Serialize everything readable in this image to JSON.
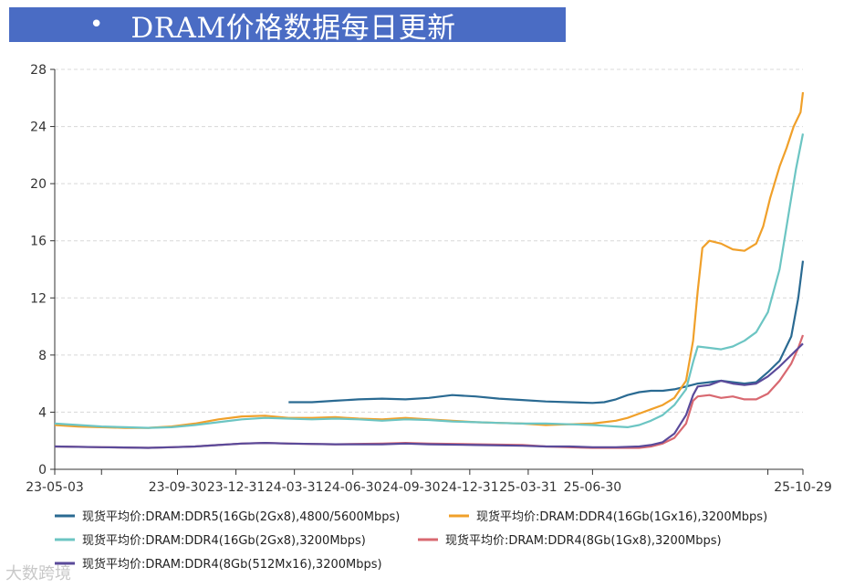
{
  "header": {
    "bullet": "•",
    "title": "DRAM价格数据每日更新"
  },
  "watermark": "大数跨境",
  "chart_data": {
    "type": "line",
    "title": "DRAM价格数据每日更新",
    "xlabel": "",
    "ylabel": "",
    "ylim": [
      0,
      28
    ],
    "yticks": [
      "0",
      "4",
      "8",
      "12",
      "16",
      "20",
      "24",
      "28"
    ],
    "xtick_labels": [
      "23-05-03",
      "23-09-30",
      "23-12-31",
      "24-03-31",
      "24-06-30",
      "24-09-30",
      "24-12-31",
      "25-03-31",
      "25-06-30",
      "25-10-29"
    ],
    "grid": true,
    "legend_position": "bottom",
    "series": [
      {
        "name": "现货平均价:DRAM:DDR5(16Gb(2Gx8),4800/5600Mbps)",
        "color": "#2a6a92",
        "points": [
          [
            10,
            4.7
          ],
          [
            11,
            4.7
          ],
          [
            12,
            4.8
          ],
          [
            13,
            4.9
          ],
          [
            14,
            4.95
          ],
          [
            15,
            4.9
          ],
          [
            16,
            5.0
          ],
          [
            17,
            5.2
          ],
          [
            18,
            5.1
          ],
          [
            19,
            4.95
          ],
          [
            20,
            4.85
          ],
          [
            21,
            4.75
          ],
          [
            22,
            4.7
          ],
          [
            23,
            4.65
          ],
          [
            23.5,
            4.7
          ],
          [
            24,
            4.9
          ],
          [
            24.5,
            5.2
          ],
          [
            25,
            5.4
          ],
          [
            25.5,
            5.5
          ],
          [
            26,
            5.5
          ],
          [
            26.5,
            5.6
          ],
          [
            27,
            5.8
          ],
          [
            27.5,
            6.0
          ],
          [
            28,
            6.1
          ],
          [
            28.5,
            6.2
          ],
          [
            29,
            6.1
          ],
          [
            29.5,
            6.0
          ],
          [
            30,
            6.1
          ],
          [
            30.5,
            6.8
          ],
          [
            31,
            7.6
          ],
          [
            31.5,
            9.3
          ],
          [
            31.8,
            12.0
          ],
          [
            32,
            14.6
          ]
        ]
      },
      {
        "name": "现货平均价:DRAM:DDR4(16Gb(1Gx16),3200Mbps)",
        "color": "#f0a02a",
        "points": [
          [
            0,
            3.1
          ],
          [
            1,
            3.0
          ],
          [
            2,
            2.95
          ],
          [
            3,
            2.9
          ],
          [
            4,
            2.9
          ],
          [
            5,
            3.0
          ],
          [
            6,
            3.2
          ],
          [
            7,
            3.5
          ],
          [
            8,
            3.7
          ],
          [
            9,
            3.75
          ],
          [
            10,
            3.6
          ],
          [
            11,
            3.6
          ],
          [
            12,
            3.65
          ],
          [
            13,
            3.55
          ],
          [
            14,
            3.5
          ],
          [
            15,
            3.6
          ],
          [
            16,
            3.5
          ],
          [
            17,
            3.4
          ],
          [
            18,
            3.3
          ],
          [
            19,
            3.25
          ],
          [
            20,
            3.2
          ],
          [
            21,
            3.1
          ],
          [
            22,
            3.15
          ],
          [
            23,
            3.2
          ],
          [
            23.5,
            3.3
          ],
          [
            24,
            3.4
          ],
          [
            24.5,
            3.6
          ],
          [
            25,
            3.9
          ],
          [
            25.5,
            4.2
          ],
          [
            26,
            4.5
          ],
          [
            26.5,
            5.0
          ],
          [
            27,
            6.2
          ],
          [
            27.3,
            9.0
          ],
          [
            27.5,
            12.5
          ],
          [
            27.7,
            15.5
          ],
          [
            28,
            16.0
          ],
          [
            28.5,
            15.8
          ],
          [
            29,
            15.4
          ],
          [
            29.5,
            15.3
          ],
          [
            30,
            15.8
          ],
          [
            30.3,
            17.0
          ],
          [
            30.6,
            19.0
          ],
          [
            31,
            21.2
          ],
          [
            31.3,
            22.5
          ],
          [
            31.6,
            24.0
          ],
          [
            31.9,
            25.0
          ],
          [
            32,
            26.4
          ]
        ]
      },
      {
        "name": "现货平均价:DRAM:DDR4(16Gb(2Gx8),3200Mbps)",
        "color": "#6cc5c3",
        "points": [
          [
            0,
            3.2
          ],
          [
            1,
            3.1
          ],
          [
            2,
            3.0
          ],
          [
            3,
            2.95
          ],
          [
            4,
            2.9
          ],
          [
            5,
            2.95
          ],
          [
            6,
            3.1
          ],
          [
            7,
            3.3
          ],
          [
            8,
            3.5
          ],
          [
            9,
            3.6
          ],
          [
            10,
            3.55
          ],
          [
            11,
            3.5
          ],
          [
            12,
            3.55
          ],
          [
            13,
            3.5
          ],
          [
            14,
            3.4
          ],
          [
            15,
            3.5
          ],
          [
            16,
            3.45
          ],
          [
            17,
            3.35
          ],
          [
            18,
            3.3
          ],
          [
            19,
            3.25
          ],
          [
            20,
            3.2
          ],
          [
            21,
            3.2
          ],
          [
            22,
            3.15
          ],
          [
            23,
            3.1
          ],
          [
            23.5,
            3.05
          ],
          [
            24,
            3.0
          ],
          [
            24.5,
            2.95
          ],
          [
            25,
            3.1
          ],
          [
            25.5,
            3.4
          ],
          [
            26,
            3.8
          ],
          [
            26.5,
            4.5
          ],
          [
            27,
            5.6
          ],
          [
            27.3,
            7.5
          ],
          [
            27.5,
            8.6
          ],
          [
            28,
            8.5
          ],
          [
            28.5,
            8.4
          ],
          [
            29,
            8.6
          ],
          [
            29.5,
            9.0
          ],
          [
            30,
            9.6
          ],
          [
            30.5,
            11.0
          ],
          [
            31,
            14.0
          ],
          [
            31.4,
            18.0
          ],
          [
            31.7,
            21.0
          ],
          [
            32,
            23.5
          ]
        ]
      },
      {
        "name": "现货平均价:DRAM:DDR4(8Gb(1Gx8),3200Mbps)",
        "color": "#d86870",
        "points": [
          [
            0,
            1.6
          ],
          [
            2,
            1.55
          ],
          [
            4,
            1.5
          ],
          [
            5,
            1.55
          ],
          [
            6,
            1.6
          ],
          [
            7,
            1.7
          ],
          [
            8,
            1.8
          ],
          [
            9,
            1.85
          ],
          [
            10,
            1.8
          ],
          [
            12,
            1.75
          ],
          [
            14,
            1.8
          ],
          [
            15,
            1.85
          ],
          [
            16,
            1.8
          ],
          [
            18,
            1.75
          ],
          [
            20,
            1.7
          ],
          [
            21,
            1.6
          ],
          [
            22,
            1.55
          ],
          [
            23,
            1.5
          ],
          [
            24,
            1.5
          ],
          [
            25,
            1.5
          ],
          [
            25.5,
            1.6
          ],
          [
            26,
            1.8
          ],
          [
            26.5,
            2.2
          ],
          [
            27,
            3.2
          ],
          [
            27.3,
            4.8
          ],
          [
            27.5,
            5.1
          ],
          [
            28,
            5.2
          ],
          [
            28.5,
            5.0
          ],
          [
            29,
            5.1
          ],
          [
            29.5,
            4.9
          ],
          [
            30,
            4.9
          ],
          [
            30.5,
            5.3
          ],
          [
            31,
            6.2
          ],
          [
            31.5,
            7.4
          ],
          [
            31.8,
            8.5
          ],
          [
            32,
            9.4
          ]
        ]
      },
      {
        "name": "现货平均价:DRAM:DDR4(8Gb(512Mx16),3200Mbps)",
        "color": "#5a4a9a",
        "points": [
          [
            0,
            1.6
          ],
          [
            2,
            1.55
          ],
          [
            4,
            1.5
          ],
          [
            5,
            1.55
          ],
          [
            6,
            1.6
          ],
          [
            7,
            1.7
          ],
          [
            8,
            1.8
          ],
          [
            9,
            1.85
          ],
          [
            10,
            1.8
          ],
          [
            12,
            1.75
          ],
          [
            14,
            1.75
          ],
          [
            15,
            1.8
          ],
          [
            16,
            1.75
          ],
          [
            18,
            1.7
          ],
          [
            20,
            1.65
          ],
          [
            21,
            1.6
          ],
          [
            22,
            1.6
          ],
          [
            23,
            1.55
          ],
          [
            24,
            1.55
          ],
          [
            25,
            1.6
          ],
          [
            25.5,
            1.7
          ],
          [
            26,
            1.9
          ],
          [
            26.5,
            2.5
          ],
          [
            27,
            3.8
          ],
          [
            27.3,
            5.2
          ],
          [
            27.5,
            5.8
          ],
          [
            28,
            5.9
          ],
          [
            28.5,
            6.2
          ],
          [
            29,
            6.0
          ],
          [
            29.5,
            5.9
          ],
          [
            30,
            6.0
          ],
          [
            30.5,
            6.5
          ],
          [
            31,
            7.2
          ],
          [
            31.5,
            8.0
          ],
          [
            32,
            8.8
          ]
        ]
      }
    ]
  }
}
